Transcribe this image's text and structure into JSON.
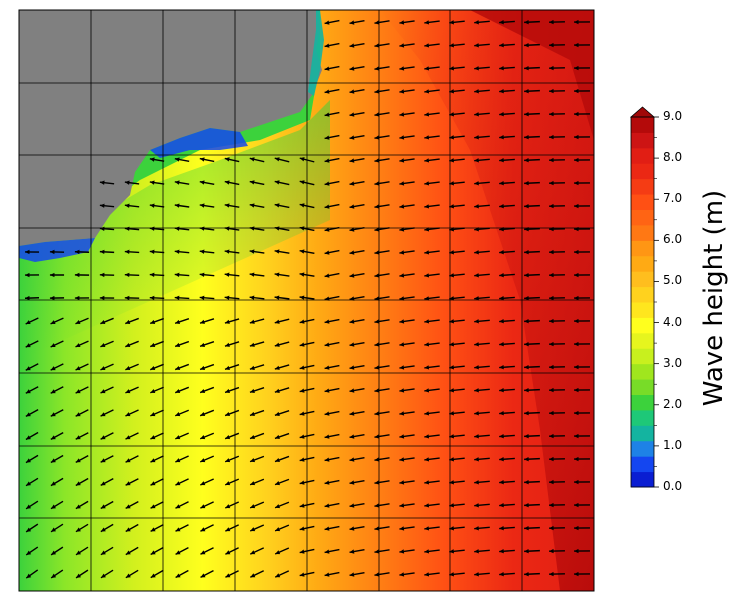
{
  "map": {
    "land_color": "#808080",
    "grid_color": "#000000",
    "arrow_color": "#000000"
  },
  "colorbar": {
    "title": "Wave height (m)",
    "ticks": [
      "0.0",
      "1.0",
      "2.0",
      "3.0",
      "4.0",
      "5.0",
      "6.0",
      "7.0",
      "8.0",
      "9.0"
    ],
    "min": 0,
    "max": 9,
    "bands": [
      "#0a1ed2",
      "#1446f0",
      "#1e82e6",
      "#14b4a0",
      "#1ec878",
      "#3cd23c",
      "#78dc28",
      "#a0e61e",
      "#c8f01e",
      "#e6f51e",
      "#ffff1e",
      "#ffe61e",
      "#ffd21e",
      "#ffbe1e",
      "#ffaa14",
      "#ff9614",
      "#ff7814",
      "#ff6414",
      "#ff5014",
      "#f53c14",
      "#eb2814",
      "#e11e14",
      "#cd1414",
      "#b40a0a"
    ],
    "overflow_color": "#a00808"
  }
}
